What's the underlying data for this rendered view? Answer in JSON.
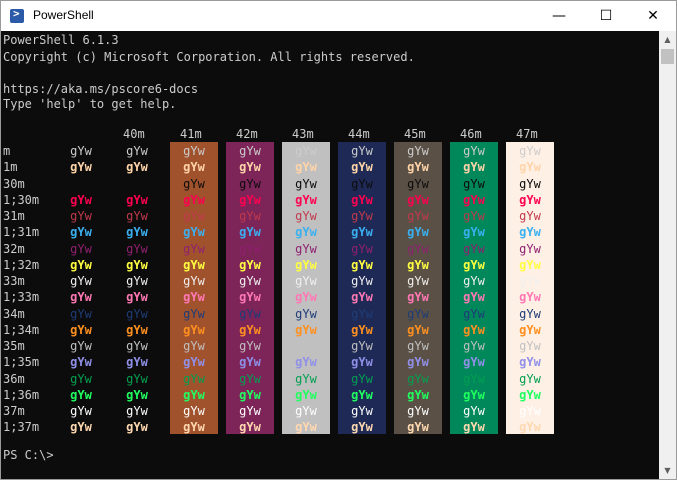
{
  "window": {
    "title": "PowerShell",
    "icon": "powershell-icon",
    "buttons": {
      "minimize": "—",
      "maximize": "☐",
      "close": "✕"
    }
  },
  "console": {
    "header_lines": [
      "PowerShell 6.1.3",
      "Copyright (c) Microsoft Corporation. All rights reserved.",
      "",
      "https://aka.ms/pscore6-docs",
      "Type 'help' to get help."
    ],
    "prompt": "PS C:\\>",
    "sample_text": "gYw",
    "column_headers": [
      "",
      "40m",
      "41m",
      "42m",
      "43m",
      "44m",
      "45m",
      "46m",
      "47m"
    ],
    "row_labels": [
      "m",
      "1m",
      "30m",
      "1;30m",
      "31m",
      "1;31m",
      "32m",
      "1;32m",
      "33m",
      "1;33m",
      "34m",
      "1;34m",
      "35m",
      "1;35m",
      "36m",
      "1;36m",
      "37m",
      "1;37m"
    ],
    "background_colors": [
      "#0c0c0c",
      "#0c0c0c",
      "#a0522d",
      "#7d2458",
      "#c0c0c0",
      "#1e2a55",
      "#5a5046",
      "#00875a",
      "#fff0e6"
    ],
    "foreground_colors": {
      "m": "#cccccc",
      "1m": "#ffd4a8",
      "30m": "#0c0c0c",
      "1;30m": "#ff0050",
      "31m": "#c0394c",
      "1;31m": "#3ab0f0",
      "32m": "#902070",
      "1;32m": "#ffff40",
      "33m": "#f0f0f0",
      "1;33m": "#ff78b4",
      "34m": "#1e3c78",
      "1;34m": "#ff9020",
      "35m": "#c0c0c0",
      "1;35m": "#9090e8",
      "36m": "#00a050",
      "1;36m": "#20ff60",
      "37m": "#ffffff",
      "1;37m": "#ffd8b0"
    }
  },
  "scrollbar": {
    "up_arrow": "▲",
    "down_arrow": "▼"
  }
}
